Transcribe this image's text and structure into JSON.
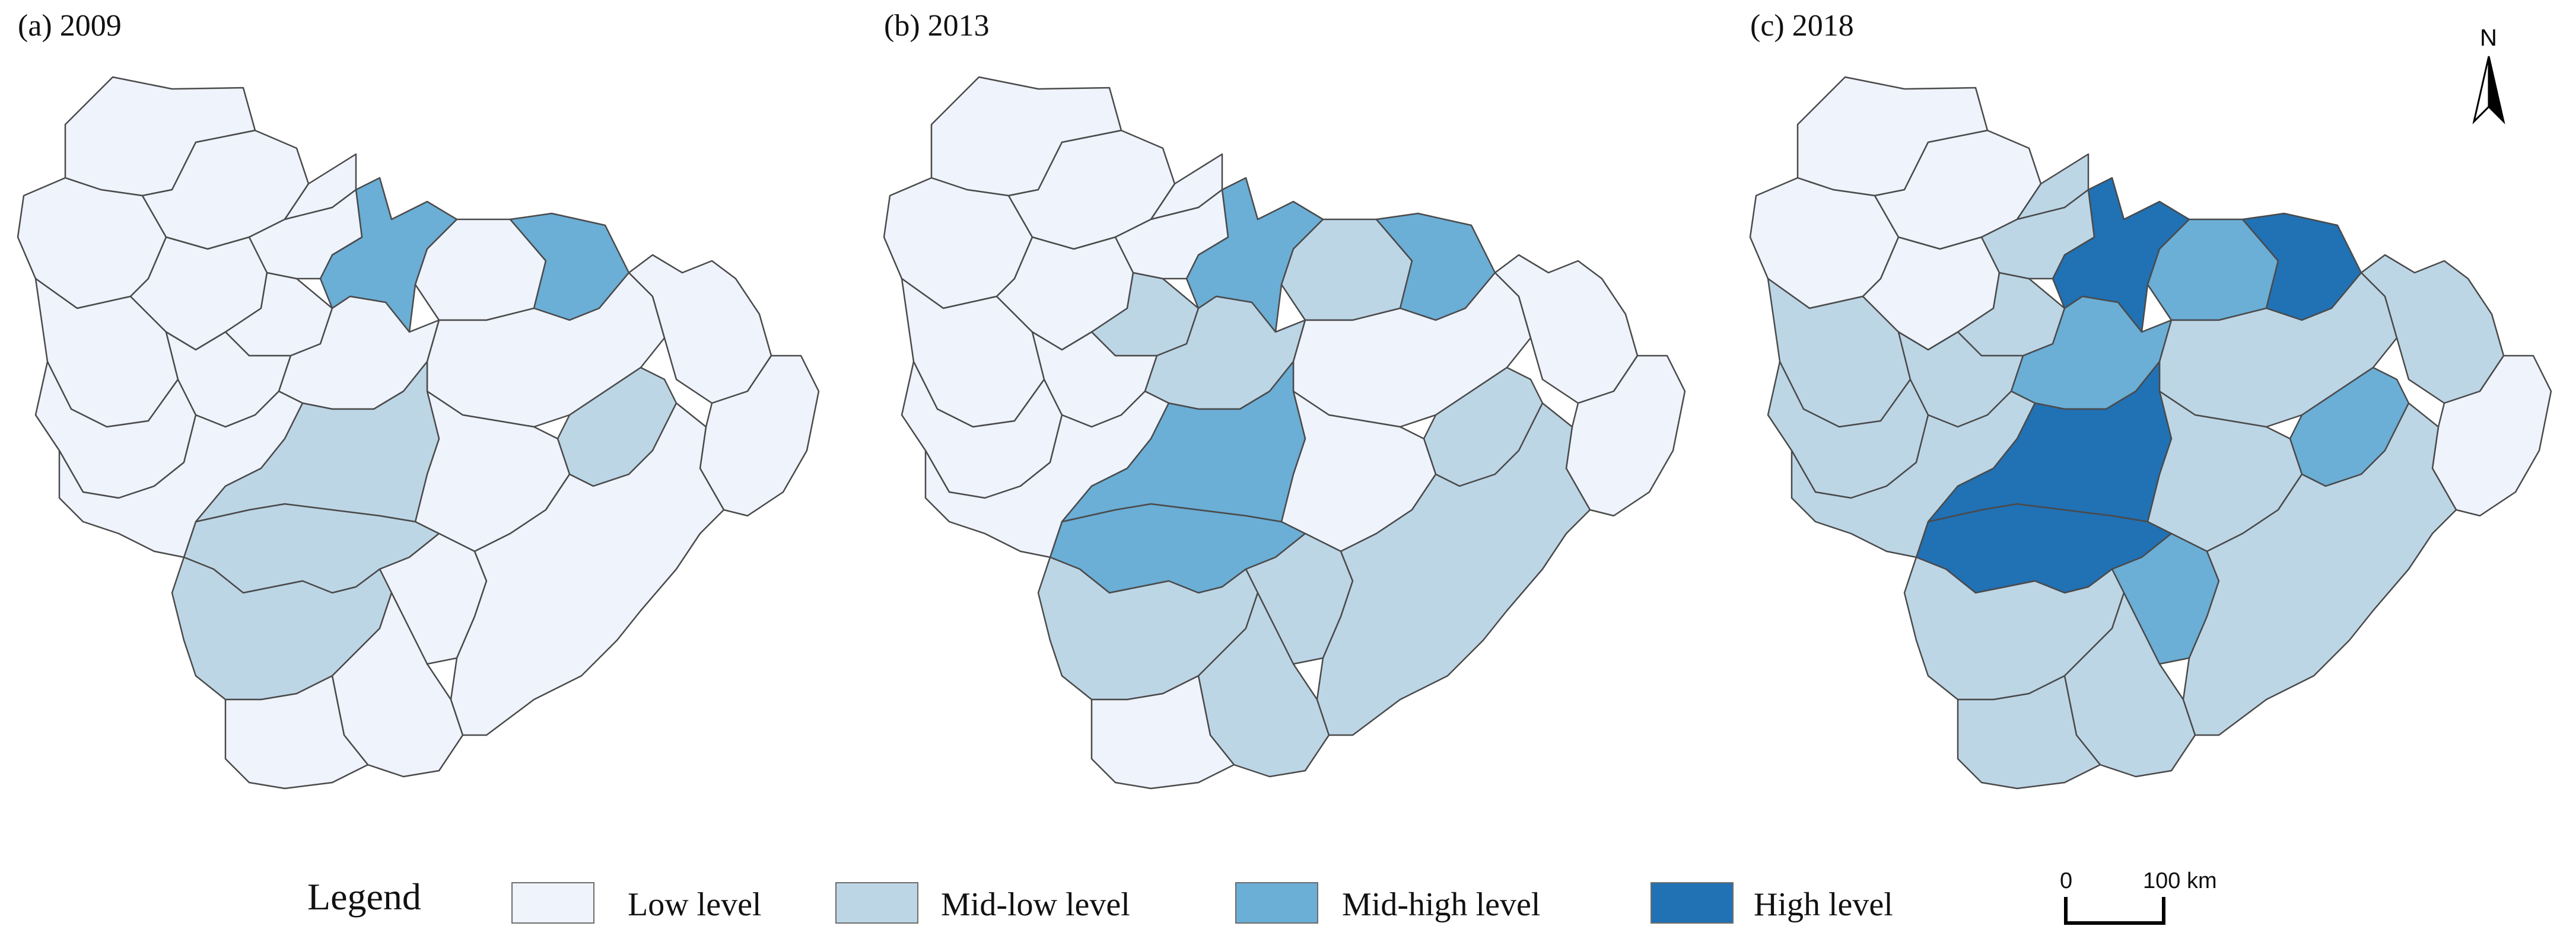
{
  "panels": [
    {
      "title": "(a) 2009"
    },
    {
      "title": "(b) 2013"
    },
    {
      "title": "(c) 2018"
    }
  ],
  "north": {
    "letter": "N"
  },
  "legend": {
    "title": "Legend",
    "items": [
      {
        "label": "Low level",
        "color": "#eef3fc"
      },
      {
        "label": "Mid-low level",
        "color": "#bdd6e6"
      },
      {
        "label": "Mid-high level",
        "color": "#6baed6"
      },
      {
        "label": "High level",
        "color": "#2171b5"
      }
    ]
  },
  "scale": {
    "zero": "0",
    "distance": "100 km"
  },
  "region_levels": {
    "2009": [
      "low",
      "low",
      "low",
      "low",
      "low",
      "low",
      "low",
      "midhigh",
      "low",
      "low",
      "low",
      "low",
      "midhigh",
      "low",
      "midlow",
      "low",
      "low",
      "low",
      "midlow",
      "low",
      "low",
      "midlow",
      "low",
      "midlow",
      "low",
      "low",
      "low"
    ],
    "2013": [
      "low",
      "low",
      "low",
      "low",
      "low",
      "low",
      "midlow",
      "midhigh",
      "midlow",
      "low",
      "low",
      "low",
      "midhigh",
      "midlow",
      "midhigh",
      "low",
      "low",
      "low",
      "midlow",
      "low",
      "low",
      "midhigh",
      "midlow",
      "midlow",
      "midlow",
      "midlow",
      "low"
    ],
    "2018": [
      "low",
      "low",
      "low",
      "midlow",
      "midlow",
      "low",
      "midlow",
      "high",
      "midhigh",
      "midlow",
      "midlow",
      "midlow",
      "high",
      "midhigh",
      "high",
      "midlow",
      "midlow",
      "low",
      "midhigh",
      "midlow",
      "midlow",
      "high",
      "midhigh",
      "midlow",
      "midlow",
      "midlow",
      "midlow"
    ]
  }
}
